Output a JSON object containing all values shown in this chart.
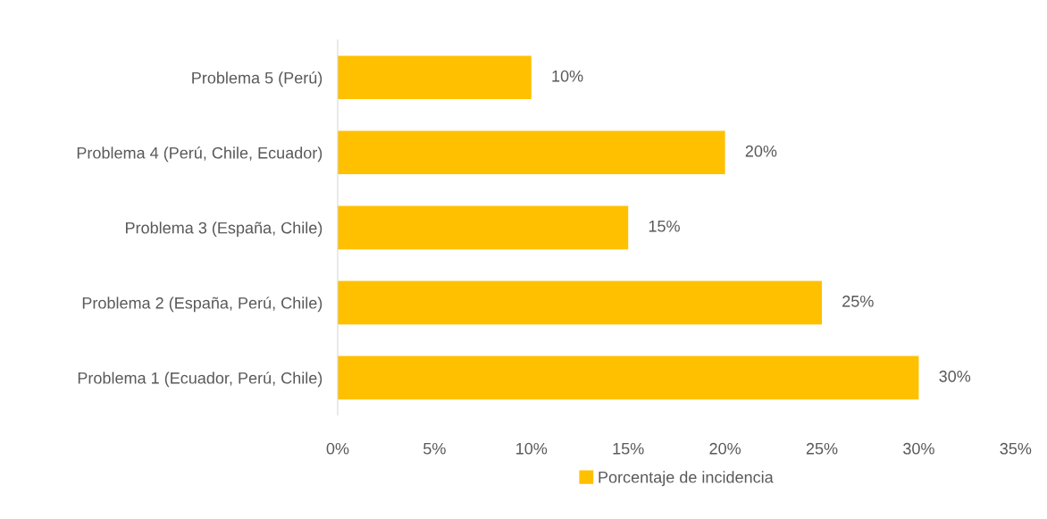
{
  "chart_data": {
    "type": "bar",
    "orientation": "horizontal",
    "categories": [
      "Problema 5 (Perú)",
      "Problema 4 (Perú, Chile, Ecuador)",
      "Problema 3 (España, Chile)",
      "Problema 2 (España, Perú, Chile)",
      "Problema 1 (Ecuador, Perú, Chile)"
    ],
    "series": [
      {
        "name": "Porcentaje de incidencia",
        "color": "#ffc000",
        "values": [
          10,
          20,
          15,
          25,
          30
        ],
        "value_labels": [
          "10%",
          "20%",
          "15%",
          "25%",
          "30%"
        ]
      }
    ],
    "xlim": [
      0,
      35
    ],
    "xticks": [
      {
        "value": 0,
        "label": "0%"
      },
      {
        "value": 5,
        "label": "5%"
      },
      {
        "value": 10,
        "label": "10%"
      },
      {
        "value": 15,
        "label": "15%"
      },
      {
        "value": 20,
        "label": "20%"
      },
      {
        "value": 25,
        "label": "25%"
      },
      {
        "value": 30,
        "label": "30%"
      },
      {
        "value": 35,
        "label": "35%"
      }
    ],
    "grid": false,
    "legend": "bottom"
  }
}
